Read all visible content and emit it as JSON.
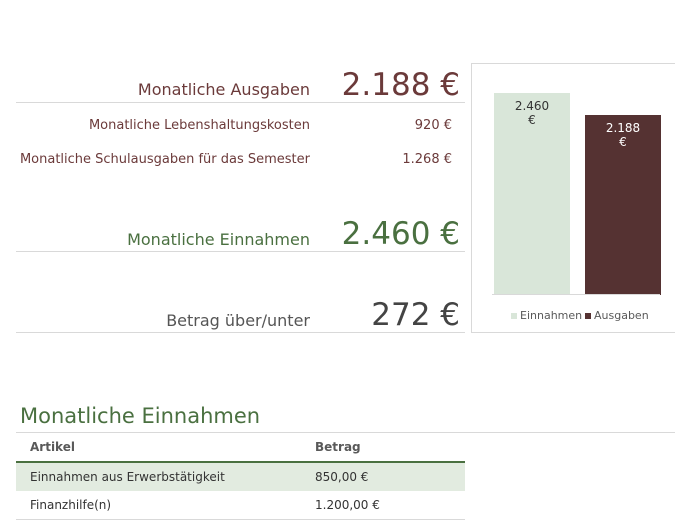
{
  "summary": {
    "expenses": {
      "label": "Monatliche Ausgaben",
      "value": "2.188 €"
    },
    "living_costs": {
      "label": "Monatliche Lebenshaltungskosten",
      "value": "920 €"
    },
    "school_costs": {
      "label": "Monatliche Schulausgaben für das Semester",
      "value": "1.268 €"
    },
    "income": {
      "label": "Monatliche Einnahmen",
      "value": "2.460 €"
    },
    "difference": {
      "label": "Betrag über/unter",
      "value": "272 €"
    }
  },
  "chart_data": {
    "type": "bar",
    "categories": [
      "Einnahmen",
      "Ausgaben"
    ],
    "values": [
      2460,
      2188
    ],
    "data_labels": [
      [
        "2.460",
        "€"
      ],
      [
        "2.188",
        "€"
      ]
    ],
    "colors": [
      "#d9e6d9",
      "#553232"
    ],
    "label_colors": [
      "#333333",
      "#ffffff"
    ],
    "legend": [
      "Einnahmen",
      "Ausgaben"
    ],
    "legend_position": "bottom",
    "ylim": [
      0,
      2800
    ],
    "grid": false
  },
  "income_table": {
    "title": "Monatliche Einnahmen",
    "headers": [
      "Artikel",
      "Betrag"
    ],
    "rows": [
      {
        "item": "Einnahmen aus Erwerbstätigkeit",
        "amount": "850,00 €"
      },
      {
        "item": "Finanzhilfe(n)",
        "amount": "1.200,00 €"
      }
    ]
  },
  "colors": {
    "expense": "#6b3a3a",
    "income": "#4a7040",
    "neutral": "#444444",
    "row_highlight": "#e2ebe0",
    "header_border": "#4a7040"
  }
}
